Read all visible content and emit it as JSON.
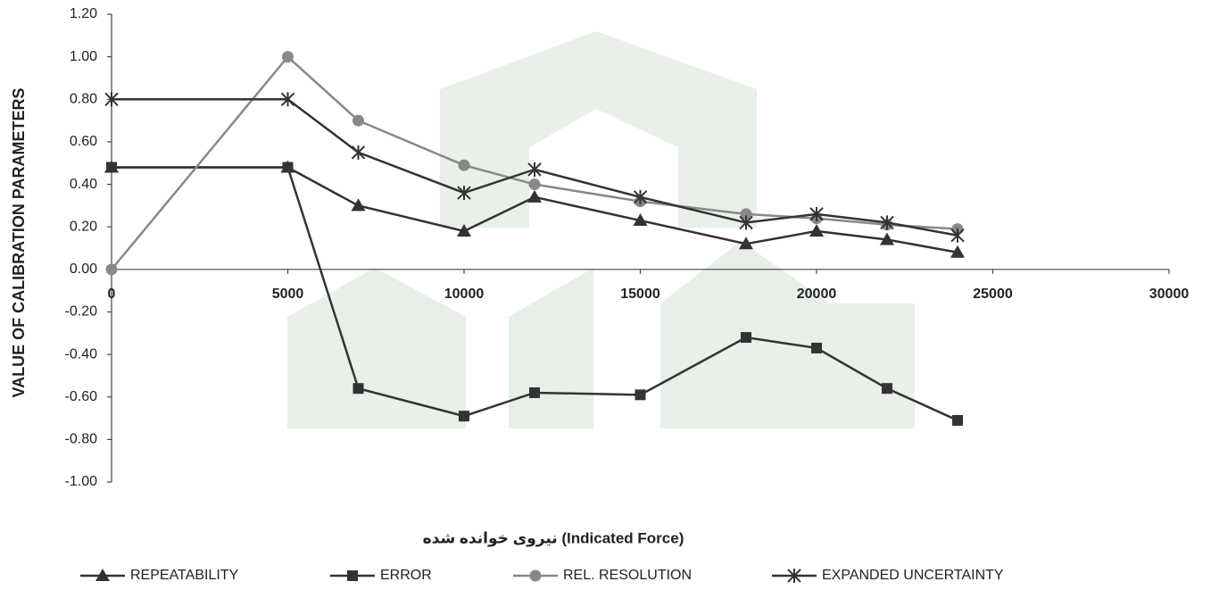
{
  "chart_data": {
    "type": "line",
    "x_label": "نیروی خوانده شده (Indicated Force)",
    "y_label": "VALUE OF CALIBRATION PARAMETERS",
    "x": [
      0,
      5000,
      7000,
      10000,
      12000,
      15000,
      18000,
      20000,
      22000,
      24000
    ],
    "series": [
      {
        "name": "REPEATABILITY",
        "color": "#333333",
        "marker": "triangle",
        "values": [
          0.48,
          0.48,
          0.3,
          0.18,
          0.34,
          0.23,
          0.12,
          0.18,
          0.14,
          0.08
        ]
      },
      {
        "name": "ERROR",
        "color": "#333333",
        "marker": "square",
        "values": [
          0.48,
          0.48,
          -0.56,
          -0.69,
          -0.58,
          -0.59,
          -0.32,
          -0.37,
          -0.56,
          -0.71
        ]
      },
      {
        "name": "REL. RESOLUTION",
        "color": "#888888",
        "marker": "circle",
        "values": [
          0,
          1.0,
          0.7,
          0.49,
          0.4,
          0.32,
          0.26,
          0.24,
          0.21,
          0.19
        ]
      },
      {
        "name": "EXPANDED UNCERTAINTY",
        "color": "#333333",
        "marker": "asterisk",
        "values": [
          0.8,
          0.8,
          0.55,
          0.36,
          0.47,
          0.34,
          0.22,
          0.26,
          0.22,
          0.16
        ]
      }
    ],
    "xlim": [
      0,
      30000
    ],
    "xticks": [
      0,
      5000,
      10000,
      15000,
      20000,
      25000,
      30000
    ],
    "ylim": [
      -1.0,
      1.2
    ],
    "yticks": [
      {
        "value": -1.0,
        "label": "-1.00"
      },
      {
        "value": -0.8,
        "label": "-0.80"
      },
      {
        "value": -0.6,
        "label": "-0.60"
      },
      {
        "value": -0.4,
        "label": "-0.40"
      },
      {
        "value": -0.2,
        "label": "-0.20"
      },
      {
        "value": 0,
        "label": "0.00"
      },
      {
        "value": 0.2,
        "label": "0.20"
      },
      {
        "value": 0.4,
        "label": "0.40"
      },
      {
        "value": 0.6,
        "label": "0.60"
      },
      {
        "value": 0.8,
        "label": "0.80"
      },
      {
        "value": 1.0,
        "label": "1.00"
      },
      {
        "value": 1.2,
        "label": "1.20"
      }
    ],
    "legend": "bottom"
  }
}
